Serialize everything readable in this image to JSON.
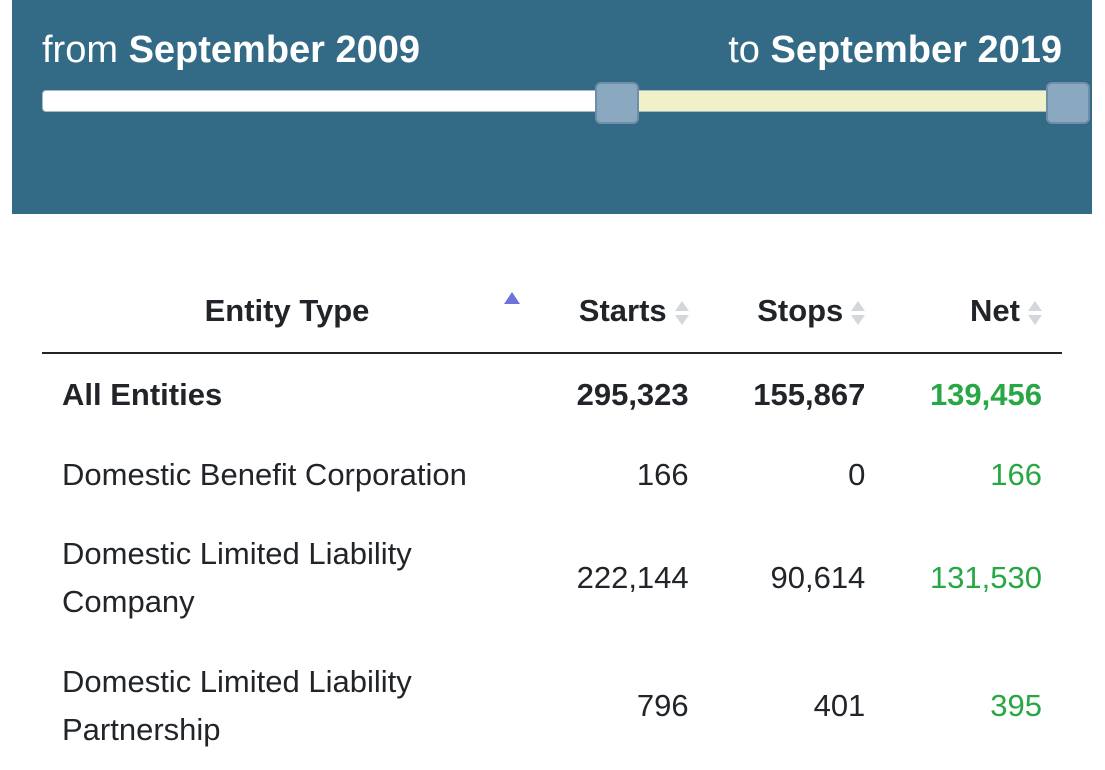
{
  "date_range": {
    "from_prefix": "from",
    "from_value": "September 2009",
    "to_prefix": "to",
    "to_value": "September 2019",
    "slider_from_fraction": 0.553,
    "slider_to_fraction": 1.0,
    "selected_color": "#f0f1c9",
    "panel_color": "#336b87"
  },
  "table": {
    "headers": {
      "entity_type": "Entity Type",
      "starts": "Starts",
      "stops": "Stops",
      "net": "Net"
    },
    "sorted_column": "entity_type",
    "sort_direction": "ascending",
    "net_color": "#28a745",
    "total": {
      "label": "All Entities",
      "starts": "295,323",
      "stops": "155,867",
      "net": "139,456"
    },
    "rows": [
      {
        "label": "Domestic Benefit Corporation",
        "starts": "166",
        "stops": "0",
        "net": "166"
      },
      {
        "label": "Domestic Limited Liability Company",
        "starts": "222,144",
        "stops": "90,614",
        "net": "131,530"
      },
      {
        "label": "Domestic Limited Liability Partnership",
        "starts": "796",
        "stops": "401",
        "net": "395"
      }
    ]
  }
}
